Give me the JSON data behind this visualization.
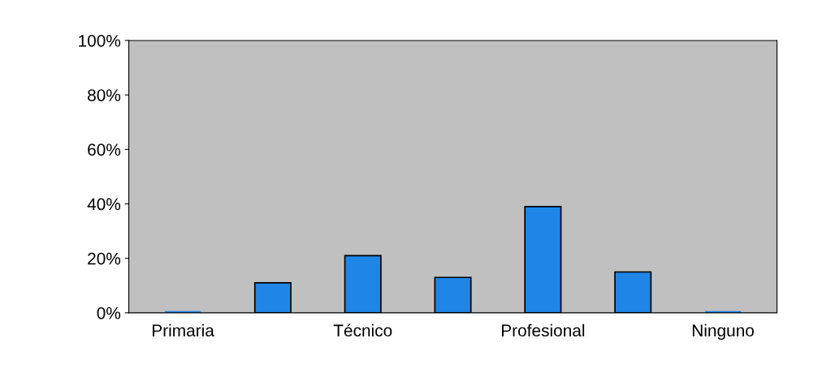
{
  "chart_data": {
    "type": "bar",
    "categories": [
      "Primaria",
      null,
      "Técnico",
      null,
      "Profesional",
      null,
      "Ninguno"
    ],
    "values": [
      0,
      11,
      21,
      13,
      39,
      15,
      0
    ],
    "color": "#1f85e6",
    "ylim": [
      0,
      100
    ],
    "yticks": [
      {
        "value": 0,
        "label": "0%"
      },
      {
        "value": 20,
        "label": "20%"
      },
      {
        "value": 40,
        "label": "40%"
      },
      {
        "value": 60,
        "label": "60%"
      },
      {
        "value": 80,
        "label": "80%"
      },
      {
        "value": 100,
        "label": "100%"
      }
    ],
    "grid": false
  }
}
